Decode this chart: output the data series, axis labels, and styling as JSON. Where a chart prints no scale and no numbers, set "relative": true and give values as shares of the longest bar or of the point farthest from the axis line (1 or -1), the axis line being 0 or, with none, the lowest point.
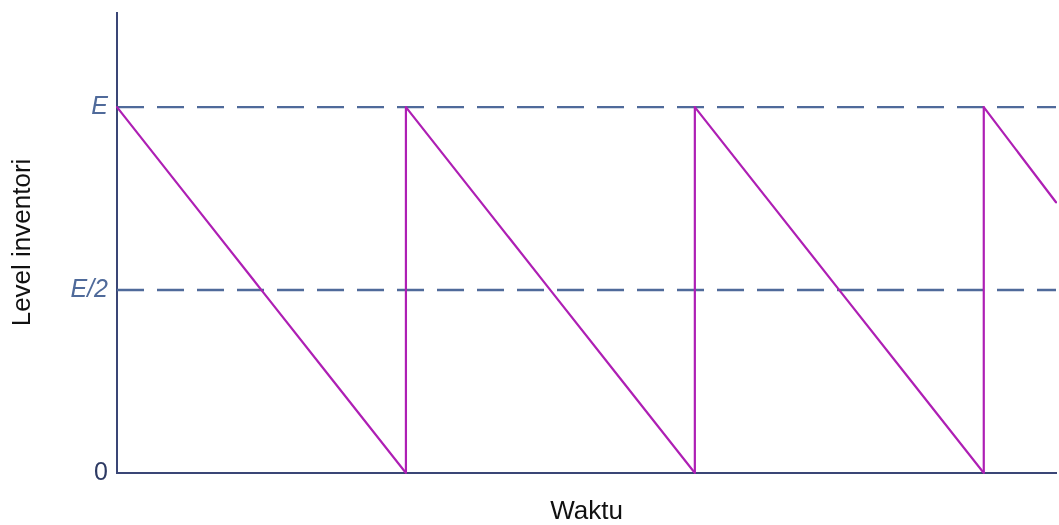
{
  "chart_data": {
    "type": "line",
    "xlabel": "Waktu",
    "ylabel": "Level inventori",
    "relative": true,
    "categories": [
      null,
      null,
      null,
      null,
      null,
      null,
      null,
      null,
      null,
      null,
      null,
      null,
      null,
      null
    ],
    "series": [
      {
        "name": "E",
        "color": "#4f6a9a",
        "line_style": "dashed",
        "values": [
          1,
          1,
          1,
          1,
          1,
          1,
          1,
          1,
          1,
          1,
          1,
          1,
          1,
          1
        ]
      },
      {
        "name": "E/2",
        "color": "#4f6a9a",
        "line_style": "dashed",
        "values": [
          0.5,
          0.5,
          0.5,
          0.5,
          0.5,
          0.5,
          0.5,
          0.5,
          0.5,
          0.5,
          0.5,
          0.5,
          0.5,
          0.5
        ]
      },
      {
        "color": "#ae1fb4",
        "values": [
          1,
          0.75,
          0.5,
          0.25,
          0,
          null,
          null,
          null,
          1,
          0.75,
          0.5,
          0.25,
          0,
          null
        ]
      },
      {
        "color": "#ae1fb4",
        "values": [
          null,
          null,
          null,
          null,
          1,
          0.75,
          0.5,
          0.25,
          0,
          null,
          null,
          null,
          1,
          0.74
        ]
      }
    ],
    "annotations": [
      "0"
    ],
    "grid": false,
    "legend": false,
    "marker": "none",
    "line_style": "solid"
  }
}
